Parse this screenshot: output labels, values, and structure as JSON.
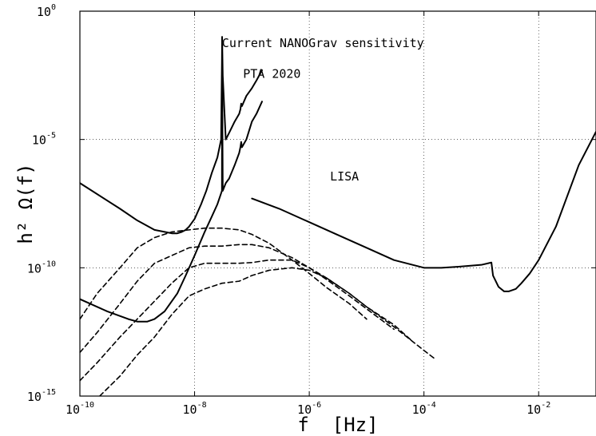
{
  "chart_data": {
    "type": "line",
    "title": "",
    "xlabel": "f  [Hz]",
    "ylabel": "h² Ω(f)",
    "x_scale": "log",
    "y_scale": "log",
    "xlim": [
      1e-10,
      0.1
    ],
    "ylim": [
      1e-15,
      1
    ],
    "grid": true,
    "x_ticks": [
      {
        "value": 1e-10,
        "base": "10",
        "exp": "-10"
      },
      {
        "value": 1e-08,
        "base": "10",
        "exp": "-8"
      },
      {
        "value": 1e-06,
        "base": "10",
        "exp": "-6"
      },
      {
        "value": 0.0001,
        "base": "10",
        "exp": "-4"
      },
      {
        "value": 0.01,
        "base": "10",
        "exp": "-2"
      }
    ],
    "y_ticks": [
      {
        "value": 1e-15,
        "base": "10",
        "exp": "-15"
      },
      {
        "value": 1e-10,
        "base": "10",
        "exp": "-10"
      },
      {
        "value": 1e-05,
        "base": "10",
        "exp": "-5"
      },
      {
        "value": 1,
        "base": "10",
        "exp": "0"
      }
    ],
    "annotations": [
      {
        "text": "Current NANOGrav sensitivity",
        "x": 3e-08,
        "y": 0.04
      },
      {
        "text": "PTA 2020",
        "x": 7e-08,
        "y": 0.0025
      },
      {
        "text": "LISA",
        "x": 2.3e-06,
        "y": 2.5e-07
      }
    ],
    "series": [
      {
        "style": "solid",
        "x": [
          1e-10,
          5e-10,
          1e-09,
          2e-09,
          3e-09,
          4e-09,
          5e-09,
          6e-09,
          7e-09,
          8e-09,
          1e-08,
          1.3e-08,
          1.6e-08,
          2e-08,
          2.5e-08,
          2.9e-08,
          3e-08,
          3.02e-08,
          3.1e-08,
          3.3e-08,
          3.5e-08,
          4e-08,
          5e-08,
          6e-08,
          6.3e-08,
          6.5e-08,
          6.7e-08,
          8e-08,
          1e-07,
          1.2e-07,
          1.5e-07
        ],
        "y": [
          2e-07,
          2e-08,
          7e-09,
          3e-09,
          2.5e-09,
          2.2e-09,
          2.2e-09,
          2.5e-09,
          3e-09,
          4e-09,
          8e-09,
          3e-08,
          1e-07,
          5e-07,
          2e-06,
          1e-05,
          0.01,
          0.1,
          0.003,
          0.00015,
          1e-05,
          1.8e-05,
          5e-05,
          0.0001,
          0.00015,
          0.00025,
          0.0002,
          0.0005,
          0.001,
          0.002,
          0.005
        ]
      },
      {
        "style": "solid",
        "x": [
          1e-10,
          3e-10,
          7e-10,
          1e-09,
          1.5e-09,
          2e-09,
          3e-09,
          5e-09,
          7e-09,
          1e-08,
          1.5e-08,
          2e-08,
          2.5e-08,
          2.9e-08,
          3e-08,
          3.02e-08,
          3.1e-08,
          3.5e-08,
          4e-08,
          5e-08,
          6e-08,
          6.3e-08,
          6.5e-08,
          6.7e-08,
          8e-08,
          1e-07,
          1.2e-07,
          1.5e-07
        ],
        "y": [
          6e-12,
          2e-12,
          1e-12,
          8e-13,
          8e-13,
          1e-12,
          2e-12,
          1e-11,
          5e-11,
          3e-10,
          2.5e-09,
          1e-08,
          3e-08,
          8e-08,
          1e-07,
          0.01,
          1e-07,
          2e-07,
          3e-07,
          1e-06,
          3e-06,
          5e-06,
          8e-06,
          5e-06,
          1e-05,
          5e-05,
          0.0001,
          0.0003
        ]
      },
      {
        "style": "solid",
        "x": [
          1e-07,
          3e-07,
          1e-06,
          3e-06,
          1e-05,
          3e-05,
          0.0001,
          0.0002,
          0.0004,
          0.001,
          0.0015,
          0.0016,
          0.002,
          0.0025,
          0.003,
          0.004,
          0.005,
          0.007,
          0.01,
          0.02,
          0.05,
          0.1
        ],
        "y": [
          5e-08,
          2e-08,
          6e-09,
          2e-09,
          6e-10,
          2e-10,
          1e-10,
          1e-10,
          1.1e-10,
          1.3e-10,
          1.6e-10,
          5e-11,
          1.8e-11,
          1.2e-11,
          1.2e-11,
          1.5e-11,
          2.5e-11,
          6e-11,
          2e-10,
          4e-09,
          1e-06,
          2e-05
        ]
      },
      {
        "style": "dashed",
        "x": [
          1e-10,
          2e-10,
          5e-10,
          1e-09,
          2e-09,
          4e-09,
          8e-09,
          1.5e-08,
          3e-08,
          6e-08,
          1e-07,
          2e-07,
          5e-07,
          1e-06,
          2e-06,
          5e-06,
          1e-05
        ],
        "y": [
          1e-12,
          1e-11,
          1e-10,
          6e-10,
          1.5e-09,
          2.5e-09,
          3e-09,
          3.5e-09,
          3.5e-09,
          3e-09,
          2e-09,
          9e-10,
          2e-10,
          6e-11,
          1.7e-11,
          4e-12,
          1e-12
        ]
      },
      {
        "style": "dashed",
        "x": [
          1e-10,
          2e-10,
          5e-10,
          1e-09,
          2e-09,
          4e-09,
          8e-09,
          1.5e-08,
          3e-08,
          6e-08,
          1e-07,
          2e-07,
          5e-07,
          1e-06,
          2e-06,
          5e-06,
          1e-05,
          3e-05
        ],
        "y": [
          5e-14,
          3e-13,
          4e-12,
          3e-11,
          1.5e-10,
          3e-10,
          6e-10,
          7e-10,
          7e-10,
          8e-10,
          8e-10,
          6e-10,
          2.5e-10,
          1e-10,
          3.5e-11,
          8e-12,
          2.5e-12,
          4e-13
        ]
      },
      {
        "style": "dashed",
        "x": [
          1e-10,
          2e-10,
          5e-10,
          1e-09,
          2e-09,
          4e-09,
          8e-09,
          1.5e-08,
          3e-08,
          6e-08,
          1e-07,
          2e-07,
          5e-07,
          1e-06,
          2e-06,
          5e-06,
          1e-05,
          3e-05,
          6e-05
        ],
        "y": [
          4e-15,
          2e-14,
          2e-13,
          1e-12,
          5e-12,
          2.5e-11,
          1e-10,
          1.5e-10,
          1.5e-10,
          1.5e-10,
          1.6e-10,
          2e-10,
          2e-10,
          1e-10,
          4e-11,
          1e-11,
          3e-12,
          6e-13,
          1.5e-13
        ]
      },
      {
        "style": "dashed",
        "x": [
          1e-10,
          2e-10,
          5e-10,
          1e-09,
          2e-09,
          4e-09,
          8e-09,
          1.5e-08,
          3e-08,
          6e-08,
          1e-07,
          2e-07,
          5e-07,
          1e-06,
          2e-06,
          5e-06,
          1e-05,
          3e-05,
          0.0001,
          0.00015
        ],
        "y": [
          3e-16,
          8e-16,
          6e-15,
          4e-14,
          2e-13,
          1.5e-12,
          8e-12,
          1.5e-11,
          2.5e-11,
          3e-11,
          5e-11,
          8e-11,
          1e-10,
          8e-11,
          4e-11,
          1e-11,
          3e-12,
          5e-13,
          6e-14,
          3e-14
        ]
      }
    ]
  }
}
